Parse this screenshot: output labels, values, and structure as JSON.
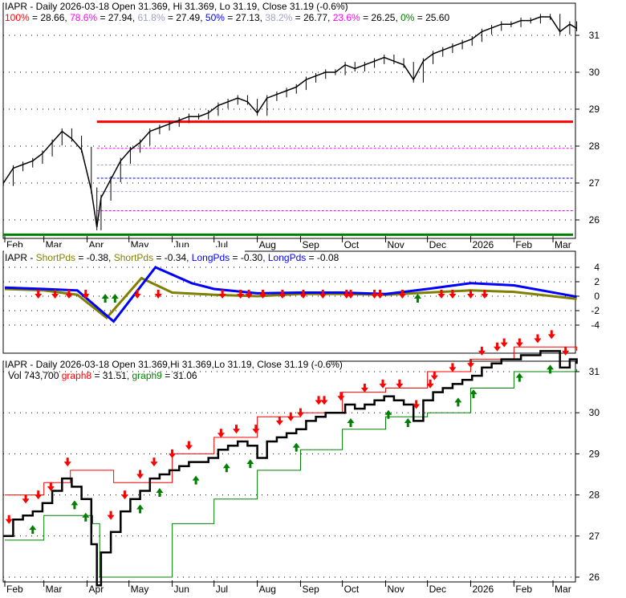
{
  "colors": {
    "fib100": "#ff0000",
    "fib786": "#ff00ff",
    "fib618": "#a0a0c8",
    "fib50": "#0000ff",
    "fib382": "#a0a0c8",
    "fib236": "#ff00ff",
    "fib0": "#008000",
    "short": "#808000",
    "long": "#0000ff",
    "graph8": "#ff0000",
    "graph9": "#008000"
  },
  "x_ticks": [
    "Feb",
    "Mar",
    "Apr",
    "May",
    "Jun",
    "Jul",
    "Aug",
    "Sep",
    "Oct",
    "Nov",
    "Dec",
    "2026",
    "Feb",
    "Mar"
  ],
  "x_tick_dates": [
    "2025-02-01",
    "2025-03-01",
    "2025-04-01",
    "2025-05-01",
    "2025-06-01",
    "2025-07-01",
    "2025-08-01",
    "2025-09-01",
    "2025-10-01",
    "2025-11-01",
    "2025-12-01",
    "2026-01-01",
    "2026-02-01",
    "2026-03-01"
  ],
  "panel1": {
    "title": "IAPR - Daily 2026-03-18 Open 31.369, Hi 31.369, Lo 31.19, Close 31.19 (-0.6%)",
    "fib": [
      {
        "label": "100%",
        "value": 28.66,
        "text": " = 28.66, "
      },
      {
        "label": "78.6%",
        "value": 27.94,
        "text": " = 27.94, "
      },
      {
        "label": "61.8%",
        "value": 27.49,
        "text": " = 27.49, "
      },
      {
        "label": "50%",
        "value": 27.13,
        "text": " = 27.13, "
      },
      {
        "label": "38.2%",
        "value": 26.77,
        "text": " = 26.77, "
      },
      {
        "label": "23.6%",
        "value": 26.25,
        "text": " = 26.25, "
      },
      {
        "label": "0%",
        "value": 25.6,
        "text": " = 25.60"
      }
    ],
    "y_ticks": [
      "26",
      "27",
      "28",
      "29",
      "30",
      "31"
    ]
  },
  "panel2": {
    "prefix": "IAPR - ",
    "legend": [
      {
        "name": "ShortPds",
        "text": " = -0.38, ",
        "color": "#808000"
      },
      {
        "name": "ShortPds",
        "text": " = -0.34, ",
        "color": "#808000"
      },
      {
        "name": "LongPds",
        "text": " = -0.30, ",
        "color": "#0000ff"
      },
      {
        "name": "LongPds",
        "text": " = -0.08",
        "color": "#0000ff"
      }
    ],
    "y_ticks": [
      "4",
      "2",
      "0",
      "-2",
      "-4"
    ]
  },
  "panel3": {
    "title": "IAPR - Daily 2026-03-18 Open 31.369,Hi 31.369,Lo 31.19, Close 31.19 (-0.6%)",
    "vol": "Vol 743,700 ",
    "graph8_label": "graph8",
    "graph8_text": " = 31.51, ",
    "graph9_label": "graph9",
    "graph9_text": " = 31.06",
    "y_ticks": [
      "26",
      "27",
      "28",
      "29",
      "30",
      "31"
    ]
  },
  "chart_data": [
    {
      "type": "line",
      "title": "IAPR - Daily 2026-03-18 Open 31.369, Hi 31.369, Lo 31.19, Close 31.19 (-0.6%)",
      "ylim": [
        25.6,
        31.7
      ],
      "series": [
        {
          "name": "Close",
          "x": [
            "2025-01-31",
            "2025-02-07",
            "2025-02-14",
            "2025-02-21",
            "2025-02-28",
            "2025-03-07",
            "2025-03-14",
            "2025-03-21",
            "2025-03-28",
            "2025-04-04",
            "2025-04-08",
            "2025-04-11",
            "2025-04-18",
            "2025-04-25",
            "2025-05-02",
            "2025-05-09",
            "2025-05-16",
            "2025-05-23",
            "2025-05-30",
            "2025-06-06",
            "2025-06-13",
            "2025-06-20",
            "2025-06-27",
            "2025-07-04",
            "2025-07-11",
            "2025-07-18",
            "2025-07-25",
            "2025-08-01",
            "2025-08-08",
            "2025-08-15",
            "2025-08-22",
            "2025-08-29",
            "2025-09-05",
            "2025-09-12",
            "2025-09-19",
            "2025-09-26",
            "2025-10-03",
            "2025-10-10",
            "2025-10-17",
            "2025-10-24",
            "2025-10-31",
            "2025-11-07",
            "2025-11-14",
            "2025-11-21",
            "2025-11-28",
            "2025-12-05",
            "2025-12-12",
            "2025-12-19",
            "2025-12-26",
            "2026-01-02",
            "2026-01-09",
            "2026-01-16",
            "2026-01-23",
            "2026-01-30",
            "2026-02-06",
            "2026-02-13",
            "2026-02-20",
            "2026-02-27",
            "2026-03-06",
            "2026-03-13",
            "2026-03-18"
          ],
          "y": [
            27.0,
            27.4,
            27.5,
            27.6,
            27.8,
            28.1,
            28.4,
            28.2,
            27.9,
            26.8,
            25.8,
            26.6,
            27.1,
            27.6,
            27.9,
            28.1,
            28.4,
            28.5,
            28.6,
            28.7,
            28.8,
            28.8,
            28.9,
            29.1,
            29.2,
            29.3,
            29.2,
            28.9,
            29.3,
            29.4,
            29.5,
            29.6,
            29.8,
            29.9,
            30.0,
            30.0,
            30.2,
            30.1,
            30.2,
            30.3,
            30.4,
            30.3,
            30.2,
            29.8,
            30.3,
            30.5,
            30.6,
            30.7,
            30.8,
            30.9,
            31.1,
            31.2,
            31.3,
            31.3,
            31.4,
            31.4,
            31.5,
            31.5,
            31.1,
            31.3,
            31.19
          ]
        }
      ]
    },
    {
      "type": "line",
      "ylim": [
        -5,
        5
      ],
      "series": [
        {
          "name": "ShortPds",
          "x": [
            "2025-02-01",
            "2025-03-01",
            "2025-03-25",
            "2025-04-15",
            "2025-05-10",
            "2025-06-01",
            "2025-07-01",
            "2025-08-01",
            "2025-09-01",
            "2025-10-01",
            "2025-11-01",
            "2025-12-01",
            "2026-01-01",
            "2026-02-01",
            "2026-03-18"
          ],
          "y": [
            1.0,
            0.8,
            0.2,
            -3.0,
            2.5,
            0.5,
            0.2,
            0.0,
            0.3,
            0.3,
            0.2,
            0.5,
            0.8,
            0.6,
            -0.38
          ]
        },
        {
          "name": "LongPds",
          "x": [
            "2025-02-01",
            "2025-03-01",
            "2025-03-25",
            "2025-04-20",
            "2025-05-20",
            "2025-06-15",
            "2025-07-01",
            "2025-08-01",
            "2025-09-01",
            "2025-10-01",
            "2025-11-01",
            "2025-12-01",
            "2026-01-01",
            "2026-02-01",
            "2026-03-18"
          ],
          "y": [
            1.2,
            1.0,
            0.8,
            -3.5,
            4.0,
            1.8,
            1.0,
            0.4,
            0.5,
            0.5,
            0.3,
            1.0,
            1.8,
            1.5,
            -0.08
          ]
        }
      ],
      "sell_signals": [
        "2025-02-25",
        "2025-03-09",
        "2025-03-19",
        "2025-03-31",
        "2025-05-07",
        "2025-05-22",
        "2025-07-07",
        "2025-07-20",
        "2025-07-26",
        "2025-08-05",
        "2025-08-19",
        "2025-09-03",
        "2025-09-17",
        "2025-10-04",
        "2025-10-07",
        "2025-10-24",
        "2025-10-28",
        "2025-11-13",
        "2025-12-11",
        "2025-12-19",
        "2026-01-01",
        "2026-01-11"
      ],
      "buy_signals": [
        "2025-04-14",
        "2025-04-21",
        "2025-11-24"
      ]
    },
    {
      "type": "line",
      "title": "IAPR - Daily 2026-03-18 Open 31.369,Hi 31.369,Lo 31.19, Close 31.19 (-0.6%)",
      "ylim": [
        25.8,
        31.8
      ],
      "series": [
        {
          "name": "graph8",
          "x": [
            "2025-02-01",
            "2025-03-01",
            "2025-03-20",
            "2025-04-20",
            "2025-05-15",
            "2025-06-01",
            "2025-07-01",
            "2025-08-01",
            "2025-09-01",
            "2025-10-01",
            "2025-11-01",
            "2025-12-01",
            "2026-01-01",
            "2026-02-01",
            "2026-03-18"
          ],
          "y": [
            28.0,
            28.3,
            28.6,
            28.3,
            28.3,
            29.0,
            29.4,
            29.9,
            30.0,
            30.5,
            30.6,
            31.0,
            31.3,
            31.6,
            31.51
          ]
        },
        {
          "name": "graph9",
          "x": [
            "2025-02-01",
            "2025-03-01",
            "2025-04-05",
            "2025-04-10",
            "2025-05-15",
            "2025-06-01",
            "2025-07-01",
            "2025-08-01",
            "2025-09-01",
            "2025-10-01",
            "2025-11-01",
            "2025-12-01",
            "2026-01-01",
            "2026-02-01",
            "2026-03-18"
          ],
          "y": [
            26.9,
            27.5,
            27.3,
            26.0,
            26.0,
            27.3,
            27.9,
            28.6,
            29.1,
            29.6,
            29.9,
            30.0,
            30.6,
            31.0,
            31.06
          ]
        }
      ],
      "sell_signals": [
        "2025-02-04",
        "2025-02-16",
        "2025-02-25",
        "2025-03-06",
        "2025-03-18",
        "2025-04-18",
        "2025-04-28",
        "2025-05-09",
        "2025-05-19",
        "2025-06-01",
        "2025-06-13",
        "2025-07-06",
        "2025-07-17",
        "2025-07-31",
        "2025-08-17",
        "2025-08-25",
        "2025-09-01",
        "2025-09-14",
        "2025-09-18",
        "2025-09-30",
        "2025-10-17",
        "2025-10-30",
        "2025-11-11",
        "2025-11-23",
        "2025-12-03",
        "2025-12-06",
        "2025-12-19",
        "2026-01-01",
        "2026-01-09",
        "2026-01-20",
        "2026-01-25",
        "2026-02-05",
        "2026-02-18",
        "2026-02-28",
        "2026-03-10"
      ],
      "buy_signals": [
        "2025-02-21",
        "2025-03-23",
        "2025-03-31",
        "2025-04-08",
        "2025-05-09",
        "2025-05-23",
        "2025-06-18",
        "2025-07-10",
        "2025-07-27",
        "2025-08-29",
        "2025-10-07",
        "2025-11-03",
        "2025-11-17",
        "2025-12-23",
        "2026-01-03",
        "2026-02-05",
        "2026-02-27"
      ]
    }
  ]
}
